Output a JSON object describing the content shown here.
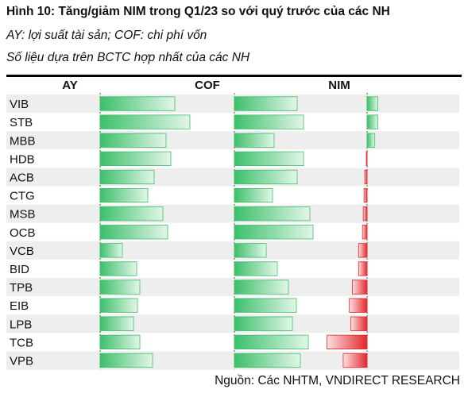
{
  "title": "Hình 10: Tăng/giảm NIM trong Q1/23 so với quý trước của các NH",
  "subtitle_1": "AY: lợi suất tài sản; COF: chi phí vốn",
  "subtitle_2": "Số liệu dựa trên BCTC hợp nhất của các NH",
  "source": "Nguồn: Các NHTM, VNDIRECT RESEARCH",
  "colors": {
    "positive_dark": "#3cbf6a",
    "positive_light": "#e2f6e8",
    "negative_dark": "#e3262c",
    "negative_light": "#fbe0e1",
    "row_stripe": "#eeeeee"
  },
  "chart_data": {
    "type": "bar",
    "categories": [
      "VIB",
      "STB",
      "MBB",
      "HDB",
      "ACB",
      "CTG",
      "MSB",
      "OCB",
      "VCB",
      "BID",
      "TPB",
      "EIB",
      "LPB",
      "TCB",
      "VPB"
    ],
    "panels": [
      {
        "name": "AY",
        "values": [
          0.94,
          1.13,
          0.83,
          0.89,
          0.68,
          0.6,
          0.79,
          0.85,
          0.28,
          0.46,
          0.5,
          0.47,
          0.42,
          0.5,
          0.66
        ]
      },
      {
        "name": "COF",
        "values": [
          0.79,
          0.87,
          0.5,
          0.87,
          0.79,
          0.48,
          0.95,
          0.99,
          0.4,
          0.54,
          0.68,
          0.78,
          0.73,
          0.93,
          0.83
        ]
      },
      {
        "name": "NIM",
        "values": [
          0.14,
          0.14,
          0.1,
          -0.01,
          -0.03,
          -0.04,
          -0.05,
          -0.06,
          -0.11,
          -0.11,
          -0.19,
          -0.23,
          -0.21,
          -0.52,
          -0.31
        ]
      }
    ],
    "value_axis_shown": false,
    "grid": false,
    "legend": "none"
  }
}
